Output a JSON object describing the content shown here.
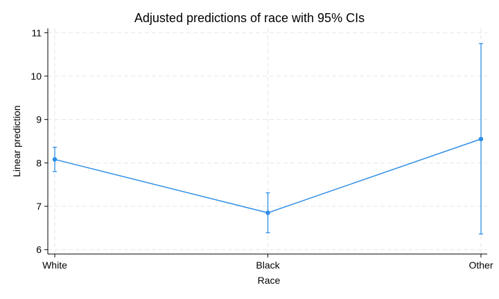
{
  "chart_data": {
    "type": "line",
    "title": "Adjusted predictions of race with 95% CIs",
    "xlabel": "Race",
    "ylabel": "Linear prediction",
    "categories": [
      "White",
      "Black",
      "Other"
    ],
    "ylim": [
      5.9,
      11.1
    ],
    "yticks": [
      "6",
      "7",
      "8",
      "9",
      "10",
      "11"
    ],
    "series": [
      {
        "values": [
          8.08,
          6.85,
          8.55
        ],
        "ci_lower": [
          7.8,
          6.39,
          6.36
        ],
        "ci_upper": [
          8.36,
          7.31,
          10.75
        ],
        "color": "#2f8fe6"
      }
    ],
    "grid": true,
    "legend": "none"
  }
}
